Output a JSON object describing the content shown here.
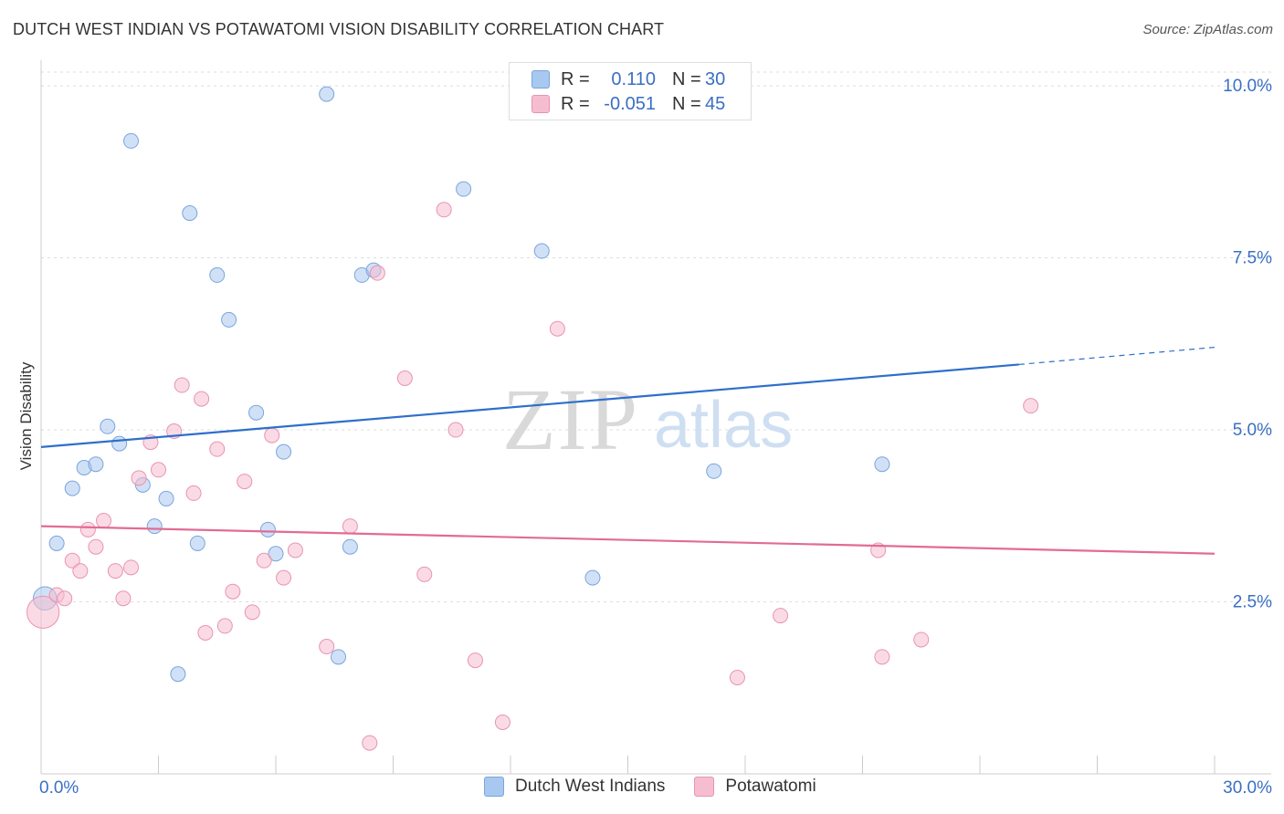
{
  "title": "DUTCH WEST INDIAN VS POTAWATOMI VISION DISABILITY CORRELATION CHART",
  "source": "Source: ZipAtlas.com",
  "watermark": {
    "zip": "ZIP",
    "atlas": "atlas"
  },
  "colors": {
    "blue_fill": "#a9c8f0",
    "blue_stroke": "#7aa5dc",
    "blue_line": "#2e6fcb",
    "pink_fill": "#f6bdd0",
    "pink_stroke": "#e993b1",
    "pink_line": "#e26b95",
    "axis_label": "#3a6fc4",
    "grid": "#dddddd"
  },
  "legend_top": [
    {
      "r_label": "R =",
      "r_value": "0.110",
      "n_label": "N =",
      "n_value": "30",
      "series": "blue"
    },
    {
      "r_label": "R =",
      "r_value": "-0.051",
      "n_label": "N =",
      "n_value": "45",
      "series": "pink"
    }
  ],
  "legend_bottom": [
    {
      "label": "Dutch West Indians",
      "series": "blue"
    },
    {
      "label": "Potawatomi",
      "series": "pink"
    }
  ],
  "chart_data": {
    "type": "scatter",
    "xlabel": "",
    "ylabel": "Vision Disability",
    "xlim": [
      0,
      30
    ],
    "ylim": [
      0,
      10.2
    ],
    "x_tick_labels": [
      {
        "value": 0,
        "label": "0.0%"
      },
      {
        "value": 30,
        "label": "30.0%"
      }
    ],
    "y_tick_labels": [
      {
        "value": 2.5,
        "label": "2.5%"
      },
      {
        "value": 5.0,
        "label": "5.0%"
      },
      {
        "value": 7.5,
        "label": "7.5%"
      },
      {
        "value": 10.0,
        "label": "10.0%"
      }
    ],
    "series": [
      {
        "name": "Dutch West Indians",
        "color": "blue",
        "r": 0.11,
        "n": 30,
        "trend": {
          "x0": 0,
          "y0": 4.75,
          "x1": 25,
          "y1": 5.95,
          "dash_to_x": 30,
          "dash_to_y": 6.2
        },
        "points": [
          [
            0.1,
            2.55,
            1.6
          ],
          [
            0.4,
            3.35,
            1
          ],
          [
            0.8,
            4.15,
            1
          ],
          [
            1.1,
            4.45,
            1
          ],
          [
            1.4,
            4.5,
            1
          ],
          [
            1.7,
            5.05,
            1
          ],
          [
            2.0,
            4.8,
            1
          ],
          [
            2.3,
            9.2,
            1
          ],
          [
            2.6,
            4.2,
            1
          ],
          [
            2.9,
            3.6,
            1
          ],
          [
            3.2,
            4.0,
            1
          ],
          [
            3.5,
            1.45,
            1
          ],
          [
            3.8,
            8.15,
            1
          ],
          [
            4.0,
            3.35,
            1
          ],
          [
            4.5,
            7.25,
            1
          ],
          [
            4.8,
            6.6,
            1
          ],
          [
            5.5,
            5.25,
            1
          ],
          [
            5.8,
            3.55,
            1
          ],
          [
            6.0,
            3.2,
            1
          ],
          [
            6.2,
            4.68,
            1
          ],
          [
            7.3,
            9.88,
            1
          ],
          [
            7.6,
            1.7,
            1
          ],
          [
            7.9,
            3.3,
            1
          ],
          [
            8.2,
            7.25,
            1
          ],
          [
            8.5,
            7.32,
            1
          ],
          [
            10.8,
            8.5,
            1
          ],
          [
            12.8,
            7.6,
            1
          ],
          [
            14.1,
            2.85,
            1
          ],
          [
            17.2,
            4.4,
            1
          ],
          [
            21.5,
            4.5,
            1
          ]
        ]
      },
      {
        "name": "Potawatomi",
        "color": "pink",
        "r": -0.051,
        "n": 45,
        "trend": {
          "x0": 0,
          "y0": 3.6,
          "x1": 30,
          "y1": 3.2
        },
        "points": [
          [
            0.05,
            2.35,
            2.2
          ],
          [
            0.4,
            2.6,
            1
          ],
          [
            0.6,
            2.55,
            1
          ],
          [
            0.8,
            3.1,
            1
          ],
          [
            1.0,
            2.95,
            1
          ],
          [
            1.2,
            3.55,
            1
          ],
          [
            1.4,
            3.3,
            1
          ],
          [
            1.6,
            3.68,
            1
          ],
          [
            1.9,
            2.95,
            1
          ],
          [
            2.1,
            2.55,
            1
          ],
          [
            2.3,
            3.0,
            1
          ],
          [
            2.5,
            4.3,
            1
          ],
          [
            2.8,
            4.82,
            1
          ],
          [
            3.0,
            4.42,
            1
          ],
          [
            3.4,
            4.98,
            1
          ],
          [
            3.6,
            5.65,
            1
          ],
          [
            3.9,
            4.08,
            1
          ],
          [
            4.1,
            5.45,
            1
          ],
          [
            4.2,
            2.05,
            1
          ],
          [
            4.5,
            4.72,
            1
          ],
          [
            4.7,
            2.15,
            1
          ],
          [
            4.9,
            2.65,
            1
          ],
          [
            5.2,
            4.25,
            1
          ],
          [
            5.4,
            2.35,
            1
          ],
          [
            5.7,
            3.1,
            1
          ],
          [
            5.9,
            4.92,
            1
          ],
          [
            6.2,
            2.85,
            1
          ],
          [
            6.5,
            3.25,
            1
          ],
          [
            7.3,
            1.85,
            1
          ],
          [
            7.9,
            3.6,
            1
          ],
          [
            8.4,
            0.45,
            1
          ],
          [
            8.6,
            7.28,
            1
          ],
          [
            9.3,
            5.75,
            1
          ],
          [
            9.8,
            2.9,
            1
          ],
          [
            10.3,
            8.2,
            1
          ],
          [
            10.6,
            5.0,
            1
          ],
          [
            11.1,
            1.65,
            1
          ],
          [
            11.8,
            0.75,
            1
          ],
          [
            13.2,
            6.47,
            1
          ],
          [
            17.8,
            1.4,
            1
          ],
          [
            18.9,
            2.3,
            1
          ],
          [
            21.4,
            3.25,
            1
          ],
          [
            21.5,
            1.7,
            1
          ],
          [
            22.5,
            1.95,
            1
          ],
          [
            25.3,
            5.35,
            1
          ]
        ]
      }
    ]
  }
}
